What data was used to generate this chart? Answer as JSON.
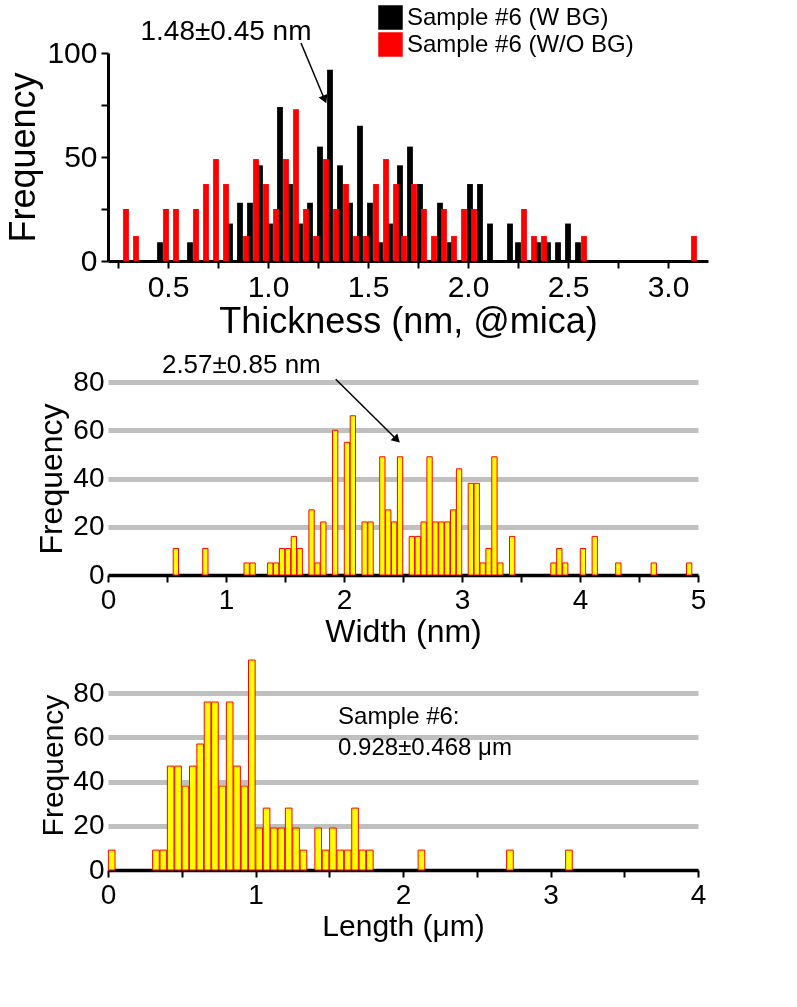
{
  "chart_data": [
    {
      "type": "bar",
      "xlabel": "Thickness (nm, @mica)",
      "ylabel": "Frequency",
      "legend": "top right",
      "xlim": [
        0.2,
        3.2
      ],
      "xticks": [
        {
          "value": 0.25,
          "label": null
        },
        0.5,
        {
          "value": 0.75,
          "label": null
        },
        {
          "value": 1,
          "label": "1.0"
        },
        {
          "value": 1.25,
          "label": null
        },
        1.5,
        {
          "value": 1.75,
          "label": null
        },
        {
          "value": 2,
          "label": "2.0"
        },
        {
          "value": 2.25,
          "label": null
        },
        2.5,
        {
          "value": 2.75,
          "label": null
        },
        {
          "value": 3,
          "label": "3.0"
        }
      ],
      "ylim": [
        0,
        100
      ],
      "yticks": [
        0,
        {
          "value": 25,
          "label": null
        },
        50,
        {
          "value": 75,
          "label": null
        },
        100
      ],
      "annotations": [
        {
          "text": "1.48±0.45 nm",
          "x": 1.29,
          "y": 76
        }
      ],
      "series": [
        {
          "name": "Sample #6 (W BG)",
          "color": "#000000",
          "x": [
            0.46,
            0.61,
            0.81,
            0.86,
            0.91,
            0.96,
            1.01,
            1.06,
            1.11,
            1.16,
            1.21,
            1.26,
            1.31,
            1.36,
            1.41,
            1.46,
            1.51,
            1.56,
            1.61,
            1.66,
            1.71,
            1.76,
            1.86,
            1.91,
            2.01,
            2.06,
            2.11,
            2.21,
            2.25,
            2.35,
            2.4,
            2.45,
            2.5,
            2.55
          ],
          "values": [
            9,
            9,
            18,
            28,
            28,
            46,
            18,
            74,
            37,
            18,
            28,
            55,
            92,
            46,
            28,
            65,
            28,
            9,
            18,
            46,
            55,
            37,
            28,
            9,
            37,
            37,
            18,
            18,
            9,
            9,
            9,
            9,
            18,
            9
          ]
        },
        {
          "name": "Sample #6 (W/O BG)",
          "color": "#ff0000",
          "x": [
            0.29,
            0.34,
            0.49,
            0.54,
            0.64,
            0.69,
            0.74,
            0.79,
            0.89,
            0.94,
            0.99,
            1.04,
            1.09,
            1.14,
            1.19,
            1.24,
            1.29,
            1.34,
            1.39,
            1.44,
            1.49,
            1.54,
            1.59,
            1.64,
            1.68,
            1.73,
            1.78,
            1.83,
            1.88,
            1.93,
            1.98,
            2.03,
            2.28,
            2.33,
            2.38,
            2.58,
            3.13
          ],
          "values": [
            25,
            12,
            25,
            25,
            25,
            37,
            49,
            37,
            12,
            49,
            37,
            25,
            49,
            73,
            25,
            12,
            49,
            25,
            37,
            12,
            12,
            37,
            49,
            37,
            12,
            37,
            25,
            12,
            25,
            12,
            25,
            25,
            25,
            12,
            12,
            12,
            12
          ]
        }
      ]
    },
    {
      "type": "bar",
      "xlabel": "Width (nm)",
      "ylabel": "Frequency",
      "grid": "y",
      "xlim": [
        0,
        5
      ],
      "xticks": [
        0,
        {
          "value": 0.5,
          "label": null
        },
        1,
        {
          "value": 1.5,
          "label": null
        },
        2,
        {
          "value": 2.5,
          "label": null
        },
        3,
        {
          "value": 3.5,
          "label": null
        },
        4,
        {
          "value": 4.5,
          "label": null
        },
        5
      ],
      "ylim": [
        0,
        80
      ],
      "yticks": [
        0,
        20,
        40,
        60,
        80
      ],
      "annotations": [
        "2.57±0.85 nm"
      ],
      "series": [
        {
          "color": "#ffff00",
          "x": [
            0.575,
            0.825,
            1.175,
            1.225,
            1.375,
            1.425,
            1.475,
            1.525,
            1.575,
            1.625,
            1.725,
            1.775,
            1.825,
            1.925,
            2.025,
            2.075,
            2.175,
            2.225,
            2.325,
            2.375,
            2.425,
            2.475,
            2.575,
            2.625,
            2.675,
            2.725,
            2.775,
            2.825,
            2.875,
            2.925,
            2.975,
            3.075,
            3.125,
            3.175,
            3.225,
            3.275,
            3.325,
            3.425,
            3.775,
            3.825,
            3.875,
            4.025,
            4.125,
            4.325,
            4.625,
            4.925
          ],
          "values": [
            11,
            11,
            5,
            5,
            5,
            5,
            11,
            11,
            16,
            11,
            27,
            5,
            22,
            60,
            55,
            66,
            22,
            22,
            49,
            27,
            22,
            49,
            16,
            16,
            22,
            49,
            22,
            22,
            22,
            27,
            44,
            38,
            38,
            5,
            11,
            49,
            5,
            16,
            5,
            11,
            5,
            11,
            16,
            5,
            5,
            5
          ]
        }
      ]
    },
    {
      "type": "bar",
      "xlabel": "Length (μm)",
      "ylabel": "Frequency",
      "grid": "y",
      "xlim": [
        0,
        4
      ],
      "xticks": [
        0,
        {
          "value": 0.5,
          "label": null
        },
        1,
        {
          "value": 1.5,
          "label": null
        },
        2,
        {
          "value": 2.5,
          "label": null
        },
        3,
        {
          "value": 3.5,
          "label": null
        },
        4
      ],
      "ylim": [
        0,
        95
      ],
      "yticks": [
        0,
        20,
        40,
        60,
        80
      ],
      "annotations": [
        "Sample #6:\n0.928±0.468 μm"
      ],
      "series": [
        {
          "color": "#ffff00",
          "x": [
            0.025,
            0.325,
            0.375,
            0.425,
            0.475,
            0.525,
            0.575,
            0.625,
            0.675,
            0.725,
            0.775,
            0.825,
            0.875,
            0.925,
            0.975,
            1.025,
            1.075,
            1.125,
            1.175,
            1.225,
            1.275,
            1.325,
            1.425,
            1.475,
            1.525,
            1.575,
            1.625,
            1.675,
            1.725,
            1.775,
            2.125,
            2.725,
            3.125
          ],
          "values": [
            9,
            9,
            9,
            47,
            47,
            38,
            47,
            57,
            76,
            76,
            38,
            76,
            47,
            38,
            95,
            19,
            28,
            19,
            19,
            28,
            19,
            9,
            19,
            9,
            19,
            9,
            9,
            28,
            9,
            9,
            9,
            9,
            9
          ]
        }
      ]
    }
  ]
}
